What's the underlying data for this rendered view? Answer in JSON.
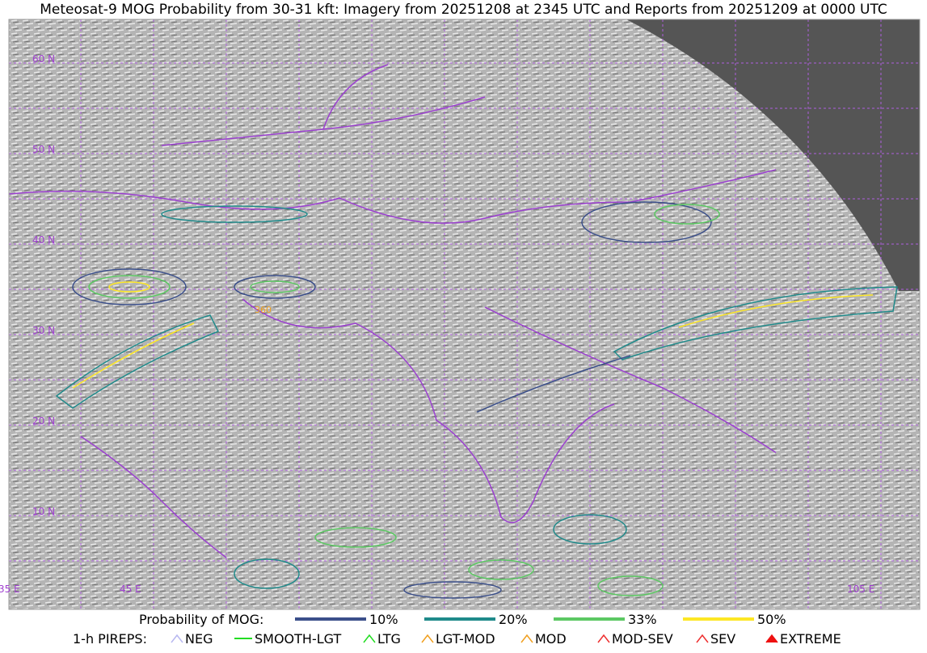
{
  "header": {
    "title": "Meteosat-9 MOG Probability from 30-31 kft: Imagery from 20251208 at 2345 UTC and Reports from 20251209 at 0000 UTC"
  },
  "map": {
    "lat_labels": [
      "60 N",
      "50 N",
      "40 N",
      "30 N",
      "20 N",
      "10 N"
    ],
    "lon_labels": [
      "35 E",
      "45 E",
      "105 E"
    ],
    "annotation": "360"
  },
  "legend": {
    "probability": {
      "label": "Probability of MOG:",
      "levels": [
        {
          "label": "10%",
          "color": "#3b4f8a"
        },
        {
          "label": "20%",
          "color": "#1f8a8a"
        },
        {
          "label": "33%",
          "color": "#5cc863"
        },
        {
          "label": "50%",
          "color": "#fde725"
        }
      ]
    },
    "pireps": {
      "label": "1-h PIREPS:",
      "items": [
        {
          "label": "NEG",
          "color": "#b8b8f0"
        },
        {
          "label": "SMOOTH-LGT",
          "color": "#22dd22"
        },
        {
          "label": "LTG",
          "color": "#22dd22"
        },
        {
          "label": "LGT-MOD",
          "color": "#f0a020"
        },
        {
          "label": "MOD",
          "color": "#f0a020"
        },
        {
          "label": "MOD-SEV",
          "color": "#ee3030"
        },
        {
          "label": "SEV",
          "color": "#ee3030"
        },
        {
          "label": "EXTREME",
          "color": "#ee1010"
        }
      ]
    }
  }
}
